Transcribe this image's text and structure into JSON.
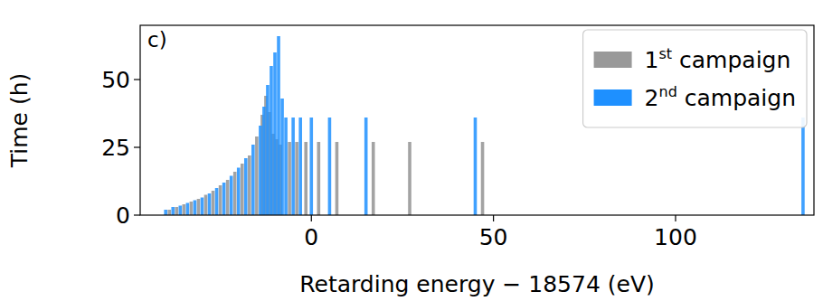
{
  "chart_data": {
    "type": "bar",
    "title": "c)",
    "x_label": "Retarding energy − 18574 (eV)",
    "y_label": "Time (h)",
    "xlim": [
      -47,
      138
    ],
    "xticks": [
      0,
      50,
      100
    ],
    "ylim": [
      0,
      70
    ],
    "yticks": [
      0,
      25,
      50
    ],
    "grid": false,
    "legend": "upper right",
    "series": [
      {
        "name": "1st campaign",
        "color": "#999999",
        "x": [
          -39,
          -37,
          -35,
          -33,
          -31,
          -29,
          -27,
          -25,
          -23,
          -21,
          -19,
          -17,
          -15,
          -13.5,
          -12.5,
          -11.5,
          -10.5,
          -9.5,
          -8.5,
          -6,
          -4,
          -1.5,
          2,
          7,
          17,
          27,
          47
        ],
        "values": [
          2,
          3,
          4,
          5,
          6,
          7.5,
          9,
          11,
          13,
          16,
          19,
          22,
          29,
          37,
          44,
          38,
          30,
          28,
          26,
          27,
          27,
          27,
          27,
          27,
          27,
          27,
          27
        ]
      },
      {
        "name": "2nd campaign",
        "color": "#1e90ff",
        "x": [
          -40,
          -38,
          -36,
          -34,
          -32,
          -30,
          -28,
          -26,
          -24,
          -22,
          -20,
          -18,
          -16,
          -14,
          -13,
          -12,
          -11,
          -10,
          -9,
          -8,
          -7,
          -5,
          -3,
          0,
          5,
          15,
          45,
          135
        ],
        "values": [
          2,
          3,
          3.5,
          4.5,
          5.5,
          6.5,
          8,
          10,
          12,
          14.5,
          17.5,
          21,
          26,
          33,
          40,
          48,
          55,
          60,
          66,
          43,
          36,
          36,
          36,
          36,
          36,
          36,
          36,
          36
        ]
      }
    ]
  }
}
